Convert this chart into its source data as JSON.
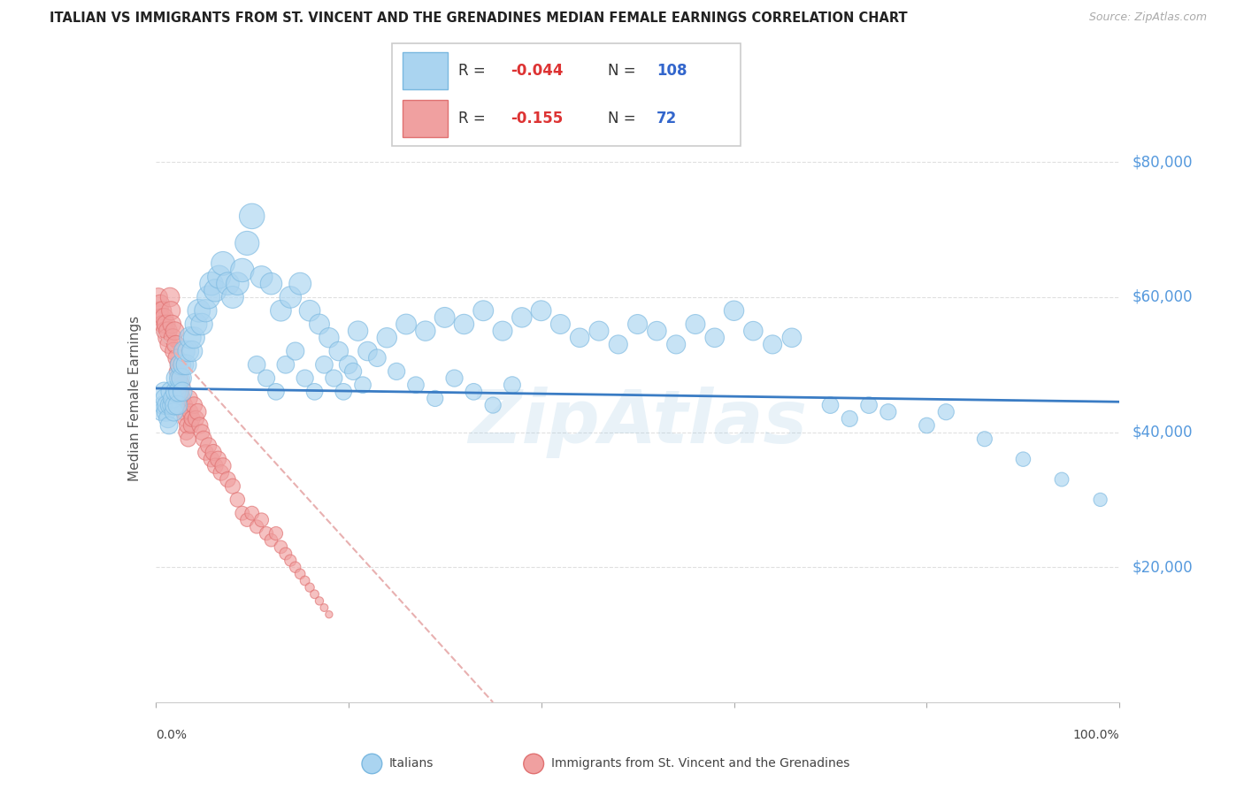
{
  "title": "ITALIAN VS IMMIGRANTS FROM ST. VINCENT AND THE GRENADINES MEDIAN FEMALE EARNINGS CORRELATION CHART",
  "source": "Source: ZipAtlas.com",
  "ylabel": "Median Female Earnings",
  "yticks": [
    0,
    20000,
    40000,
    60000,
    80000
  ],
  "ytick_labels": [
    "",
    "$20,000",
    "$40,000",
    "$60,000",
    "$80,000"
  ],
  "xmin": 0.0,
  "xmax": 1.0,
  "ymin": 0,
  "ymax": 90000,
  "color_blue_fill": "#aad4f0",
  "color_blue_edge": "#7ab8e0",
  "color_pink_fill": "#f0a0a0",
  "color_pink_edge": "#e07070",
  "color_blue_line": "#3a7cc4",
  "color_pink_line": "#e8b0b0",
  "color_grid": "#e0e0e0",
  "color_right_labels": "#5599dd",
  "watermark": "ZipAtlas",
  "italian_x": [
    0.006,
    0.008,
    0.009,
    0.01,
    0.011,
    0.012,
    0.013,
    0.014,
    0.015,
    0.016,
    0.017,
    0.018,
    0.019,
    0.02,
    0.021,
    0.022,
    0.023,
    0.024,
    0.025,
    0.026,
    0.027,
    0.028,
    0.029,
    0.03,
    0.032,
    0.034,
    0.036,
    0.038,
    0.04,
    0.042,
    0.045,
    0.048,
    0.052,
    0.055,
    0.058,
    0.062,
    0.066,
    0.07,
    0.075,
    0.08,
    0.085,
    0.09,
    0.095,
    0.1,
    0.11,
    0.12,
    0.13,
    0.14,
    0.15,
    0.16,
    0.17,
    0.18,
    0.19,
    0.2,
    0.21,
    0.22,
    0.24,
    0.26,
    0.28,
    0.3,
    0.32,
    0.34,
    0.36,
    0.38,
    0.4,
    0.42,
    0.44,
    0.46,
    0.48,
    0.5,
    0.52,
    0.54,
    0.56,
    0.58,
    0.6,
    0.62,
    0.64,
    0.66,
    0.7,
    0.72,
    0.74,
    0.76,
    0.8,
    0.82,
    0.86,
    0.9,
    0.94,
    0.98,
    0.105,
    0.115,
    0.125,
    0.135,
    0.145,
    0.155,
    0.165,
    0.175,
    0.185,
    0.195,
    0.205,
    0.215,
    0.23,
    0.25,
    0.27,
    0.29,
    0.31,
    0.33,
    0.35,
    0.37
  ],
  "italian_y": [
    43000,
    44000,
    46000,
    45000,
    43000,
    44000,
    42000,
    41000,
    44000,
    46000,
    44000,
    45000,
    43000,
    44000,
    46000,
    48000,
    44000,
    46000,
    48000,
    50000,
    48000,
    46000,
    50000,
    52000,
    50000,
    52000,
    54000,
    52000,
    54000,
    56000,
    58000,
    56000,
    58000,
    60000,
    62000,
    61000,
    63000,
    65000,
    62000,
    60000,
    62000,
    64000,
    68000,
    72000,
    63000,
    62000,
    58000,
    60000,
    62000,
    58000,
    56000,
    54000,
    52000,
    50000,
    55000,
    52000,
    54000,
    56000,
    55000,
    57000,
    56000,
    58000,
    55000,
    57000,
    58000,
    56000,
    54000,
    55000,
    53000,
    56000,
    55000,
    53000,
    56000,
    54000,
    58000,
    55000,
    53000,
    54000,
    44000,
    42000,
    44000,
    43000,
    41000,
    43000,
    39000,
    36000,
    33000,
    30000,
    50000,
    48000,
    46000,
    50000,
    52000,
    48000,
    46000,
    50000,
    48000,
    46000,
    49000,
    47000,
    51000,
    49000,
    47000,
    45000,
    48000,
    46000,
    44000,
    47000
  ],
  "italian_sizes": [
    200,
    220,
    240,
    250,
    230,
    250,
    220,
    200,
    240,
    260,
    230,
    240,
    220,
    250,
    260,
    280,
    240,
    260,
    270,
    280,
    260,
    240,
    270,
    290,
    270,
    290,
    310,
    280,
    300,
    320,
    340,
    310,
    330,
    350,
    360,
    330,
    350,
    370,
    340,
    320,
    340,
    360,
    380,
    420,
    320,
    310,
    290,
    310,
    320,
    290,
    270,
    260,
    240,
    220,
    260,
    240,
    260,
    270,
    260,
    270,
    260,
    270,
    250,
    260,
    270,
    250,
    240,
    250,
    230,
    250,
    240,
    230,
    250,
    240,
    260,
    240,
    230,
    240,
    180,
    170,
    180,
    170,
    160,
    170,
    150,
    140,
    130,
    120,
    200,
    190,
    180,
    200,
    210,
    190,
    180,
    200,
    190,
    180,
    190,
    180,
    200,
    190,
    180,
    170,
    190,
    180,
    170,
    185
  ],
  "svg_x": [
    0.003,
    0.004,
    0.005,
    0.006,
    0.007,
    0.008,
    0.009,
    0.01,
    0.011,
    0.012,
    0.013,
    0.014,
    0.015,
    0.016,
    0.017,
    0.018,
    0.019,
    0.02,
    0.021,
    0.022,
    0.023,
    0.024,
    0.025,
    0.026,
    0.027,
    0.028,
    0.029,
    0.03,
    0.031,
    0.032,
    0.033,
    0.034,
    0.035,
    0.036,
    0.037,
    0.038,
    0.04,
    0.042,
    0.044,
    0.046,
    0.048,
    0.05,
    0.052,
    0.055,
    0.058,
    0.06,
    0.062,
    0.065,
    0.068,
    0.07,
    0.075,
    0.08,
    0.085,
    0.09,
    0.095,
    0.1,
    0.105,
    0.11,
    0.115,
    0.12,
    0.125,
    0.13,
    0.135,
    0.14,
    0.145,
    0.15,
    0.155,
    0.16,
    0.165,
    0.17,
    0.175,
    0.18
  ],
  "svg_y": [
    60000,
    58000,
    59000,
    57000,
    58000,
    56000,
    57000,
    55000,
    56000,
    54000,
    55000,
    53000,
    60000,
    58000,
    56000,
    54000,
    52000,
    55000,
    53000,
    51000,
    49000,
    50000,
    48000,
    46000,
    47000,
    45000,
    43000,
    44000,
    42000,
    40000,
    41000,
    39000,
    45000,
    43000,
    41000,
    42000,
    44000,
    42000,
    43000,
    41000,
    40000,
    39000,
    37000,
    38000,
    36000,
    37000,
    35000,
    36000,
    34000,
    35000,
    33000,
    32000,
    30000,
    28000,
    27000,
    28000,
    26000,
    27000,
    25000,
    24000,
    25000,
    23000,
    22000,
    21000,
    20000,
    19000,
    18000,
    17000,
    16000,
    15000,
    14000,
    13000
  ],
  "svg_sizes": [
    220,
    210,
    220,
    210,
    220,
    210,
    220,
    210,
    220,
    210,
    220,
    210,
    240,
    230,
    220,
    210,
    200,
    220,
    210,
    200,
    190,
    200,
    190,
    180,
    190,
    180,
    170,
    180,
    170,
    160,
    170,
    160,
    180,
    170,
    160,
    170,
    180,
    170,
    180,
    170,
    160,
    170,
    160,
    170,
    160,
    170,
    160,
    170,
    160,
    170,
    160,
    150,
    140,
    130,
    120,
    130,
    120,
    130,
    120,
    110,
    120,
    110,
    100,
    90,
    80,
    70,
    60,
    55,
    50,
    45,
    40,
    35
  ],
  "blue_line_x": [
    0.0,
    1.0
  ],
  "blue_line_y": [
    46500,
    44500
  ],
  "pink_line_x": [
    0.0,
    0.35
  ],
  "pink_line_y": [
    55000,
    0
  ]
}
